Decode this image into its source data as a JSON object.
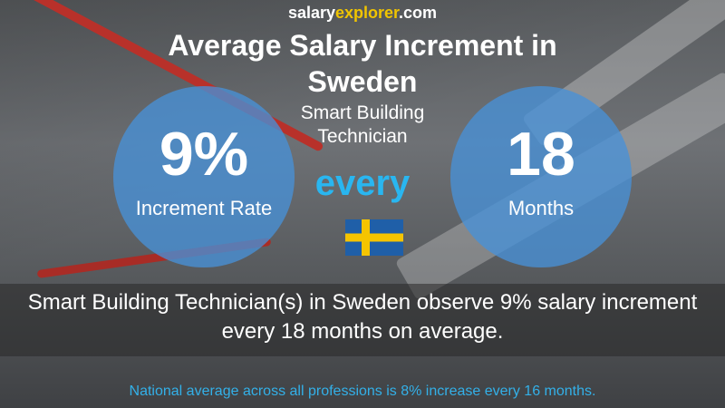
{
  "site": {
    "part1": "salary",
    "part2": "explorer",
    "part3": ".com"
  },
  "title": "Average Salary Increment in Sweden",
  "subtitle": "Smart Building Technician",
  "left": {
    "value": "9%",
    "label": "Increment Rate"
  },
  "connector": "every",
  "right": {
    "value": "18",
    "label": "Months"
  },
  "summary": "Smart Building Technician(s) in Sweden observe 9% salary increment every 18 months on average.",
  "footer": "National average across all professions is 8% increase every 16 months."
}
